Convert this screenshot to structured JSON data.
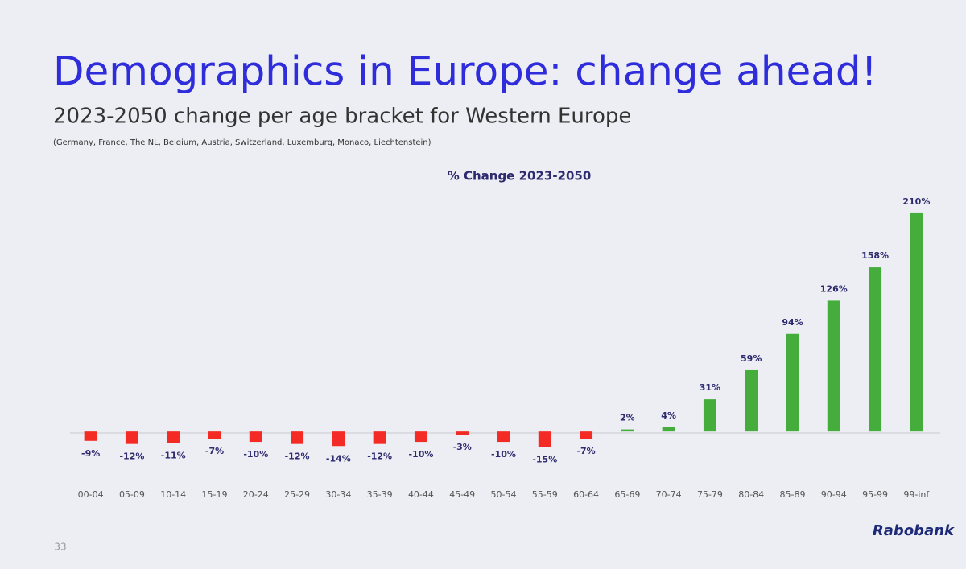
{
  "slide": {
    "title": "Demographics in Europe: change ahead!",
    "subtitle": "2023-2050 change per age bracket for Western Europe",
    "note": "(Germany, France, The NL, Belgium, Austria, Switzerland, Luxemburg, Monaco, Liechtenstein)",
    "page_number": "33",
    "brand": "Rabobank"
  },
  "chart_data": {
    "type": "bar",
    "title": "% Change 2023-2050",
    "categories": [
      "00-04",
      "05-09",
      "10-14",
      "15-19",
      "20-24",
      "25-29",
      "30-34",
      "35-39",
      "40-44",
      "45-49",
      "50-54",
      "55-59",
      "60-64",
      "65-69",
      "70-74",
      "75-79",
      "80-84",
      "85-89",
      "90-94",
      "95-99",
      "99-inf"
    ],
    "values": [
      -9,
      -12,
      -11,
      -7,
      -10,
      -12,
      -14,
      -12,
      -10,
      -3,
      -10,
      -15,
      -7,
      2,
      4,
      31,
      59,
      94,
      126,
      158,
      210
    ],
    "value_labels": [
      "-9%",
      "-12%",
      "-11%",
      "-7%",
      "-10%",
      "-12%",
      "-14%",
      "-12%",
      "-10%",
      "-3%",
      "-10%",
      "-15%",
      "-7%",
      "2%",
      "4%",
      "31%",
      "59%",
      "94%",
      "126%",
      "158%",
      "210%"
    ],
    "colors": {
      "negative": "#f42a24",
      "positive": "#44ad3c"
    },
    "ylim": [
      -20,
      220
    ]
  }
}
